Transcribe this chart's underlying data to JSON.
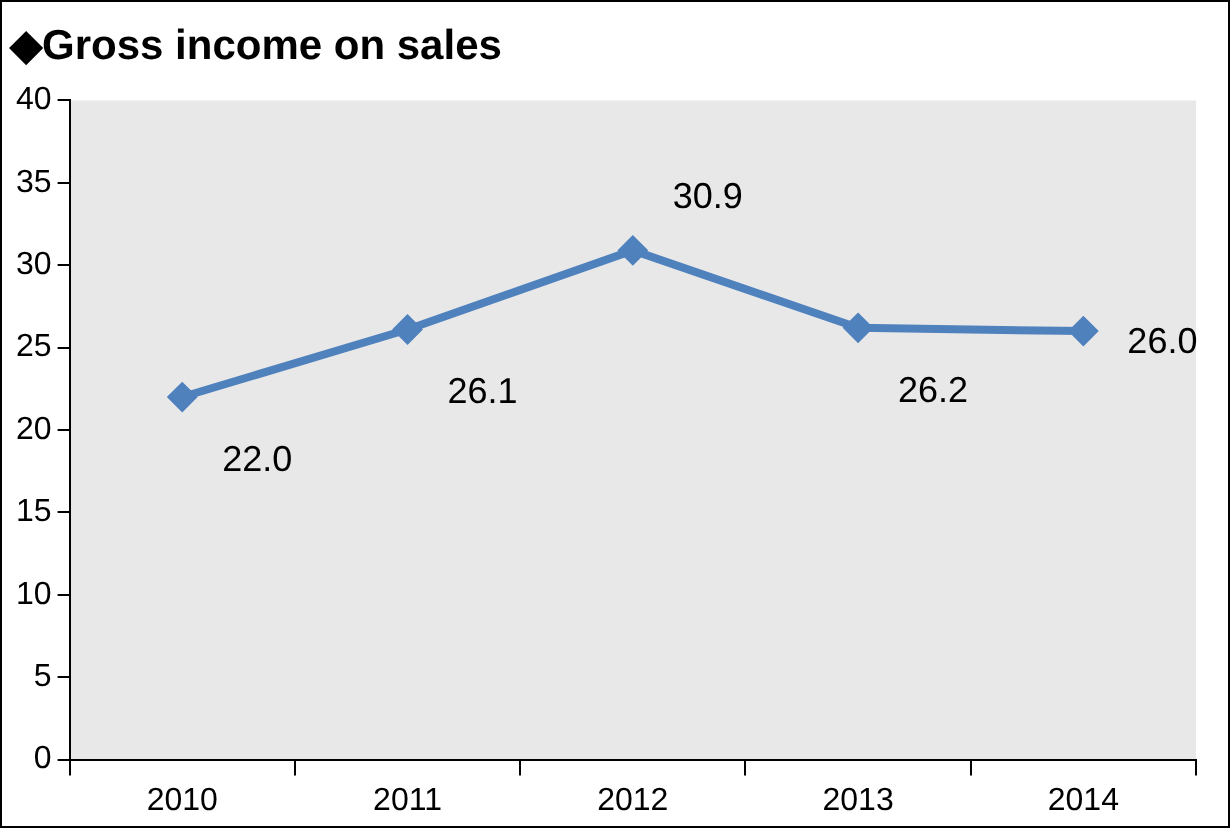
{
  "chart_data": {
    "type": "line",
    "title": "◆Gross income on sales",
    "categories": [
      "2010",
      "2011",
      "2012",
      "2013",
      "2014"
    ],
    "series": [
      {
        "color": "#4f81bd",
        "values": [
          22.0,
          26.1,
          30.9,
          26.2,
          26.0
        ],
        "value_labels": [
          "22.0",
          "26.1",
          "30.9",
          "26.2",
          "26.0"
        ]
      }
    ],
    "ylim": [
      0,
      40
    ],
    "yticks": [
      0,
      5,
      10,
      15,
      20,
      25,
      30,
      35,
      40
    ],
    "grid": false,
    "legend": false,
    "marker": "diamond",
    "line_style": "solid"
  }
}
